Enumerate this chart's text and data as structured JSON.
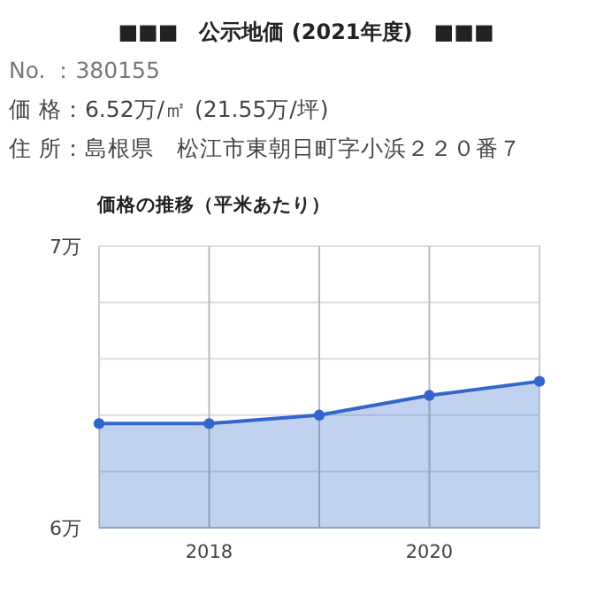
{
  "chart_data": {
    "type": "area",
    "title": "■■■　公示地価 (2021年度)　■■■",
    "subtitle": "価格の推移（平米あたり）",
    "annotations": [
      "No. ：380155",
      "価 格：6.52万/㎡ (21.55万/坪)",
      "住 所：島根県　松江市東朝日町字小浜２２０番７"
    ],
    "x": [
      2017,
      2018,
      2019,
      2020,
      2021
    ],
    "series": [
      {
        "color": "#3366cc",
        "values": [
          6.37,
          6.37,
          6.4,
          6.47,
          6.52
        ]
      }
    ],
    "xlim": [
      2017,
      2021
    ],
    "xticks": [
      2018,
      {
        "value": 2019,
        "label": null
      },
      2020
    ],
    "ylim": [
      6,
      7
    ],
    "yticks": [
      {
        "value": 6,
        "label": "6万"
      },
      {
        "value": 6.2,
        "label": null
      },
      {
        "value": 6.4,
        "label": null
      },
      {
        "value": 6.6,
        "label": null
      },
      {
        "value": 6.8,
        "label": null
      },
      {
        "value": 7,
        "label": "7万"
      }
    ],
    "grid": true,
    "marker": "circle"
  }
}
